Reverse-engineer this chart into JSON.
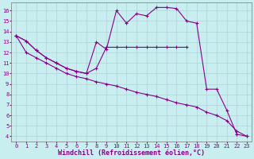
{
  "xlabel": "Windchill (Refroidissement éolien,°C)",
  "background_color": "#c8eef0",
  "line_color": "#880088",
  "xlim": [
    -0.5,
    23.5
  ],
  "ylim": [
    3.5,
    16.8
  ],
  "xticks": [
    0,
    1,
    2,
    3,
    4,
    5,
    6,
    7,
    8,
    9,
    10,
    11,
    12,
    13,
    14,
    15,
    16,
    17,
    18,
    19,
    20,
    21,
    22,
    23
  ],
  "yticks": [
    4,
    5,
    6,
    7,
    8,
    9,
    10,
    11,
    12,
    13,
    14,
    15,
    16
  ],
  "line1_x": [
    0,
    1,
    2,
    3,
    4,
    5,
    6,
    7,
    8,
    9,
    10,
    11,
    12,
    13,
    14,
    15,
    16,
    17
  ],
  "line1_y": [
    13.6,
    13.1,
    12.2,
    11.5,
    11.0,
    10.5,
    10.2,
    10.0,
    10.5,
    12.5,
    12.5,
    12.5,
    12.5,
    12.5,
    12.5,
    12.5,
    12.5,
    12.5
  ],
  "line2_x": [
    0,
    1,
    2,
    3,
    4,
    5,
    6,
    7,
    8,
    9,
    10,
    11,
    12,
    13,
    14,
    15,
    16,
    17,
    18,
    19,
    20,
    21,
    22,
    23
  ],
  "line2_y": [
    13.6,
    13.1,
    12.2,
    11.5,
    11.0,
    10.5,
    10.2,
    10.0,
    13.0,
    12.3,
    16.0,
    14.8,
    15.7,
    15.5,
    16.3,
    16.3,
    16.2,
    15.0,
    14.8,
    8.5,
    8.5,
    6.5,
    4.2,
    4.0
  ],
  "line3_x": [
    0,
    1,
    2,
    3,
    4,
    5,
    6,
    7,
    8,
    9,
    10,
    11,
    12,
    13,
    14,
    15,
    16,
    17,
    18,
    19,
    20,
    21,
    22,
    23
  ],
  "line3_y": [
    13.6,
    12.0,
    11.5,
    11.0,
    10.5,
    10.0,
    9.7,
    9.5,
    9.2,
    9.0,
    8.8,
    8.5,
    8.2,
    8.0,
    7.8,
    7.5,
    7.2,
    7.0,
    6.8,
    6.3,
    6.0,
    5.5,
    4.5,
    4.0
  ],
  "marker": "+",
  "markersize": 3,
  "linewidth": 0.8,
  "xlabel_fontsize": 6,
  "tick_fontsize": 5,
  "grid_color": "#b0d0d8",
  "xlabel_color": "#880088",
  "tick_color": "#880088"
}
